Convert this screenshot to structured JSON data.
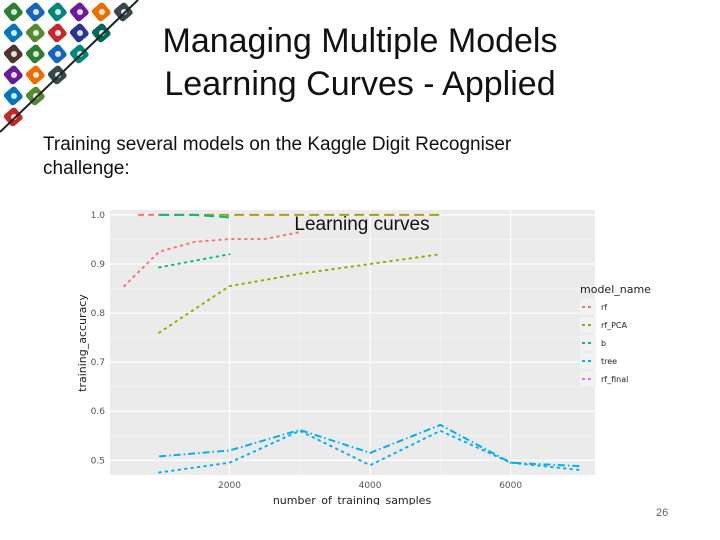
{
  "slide": {
    "title_line1": "Managing Multiple Models",
    "title_line2": "Learning Curves - Applied",
    "body": "Training several models on the Kaggle Digit Recogniser challenge:",
    "page_number": "26"
  },
  "chart_data": {
    "type": "line",
    "title": "Learning curves",
    "xlabel": "number_of_training_samples",
    "ylabel": "training_accuracy",
    "xlim": [
      300,
      7200
    ],
    "ylim": [
      0.47,
      1.01
    ],
    "x_ticks": [
      2000,
      4000,
      6000
    ],
    "y_ticks": [
      0.5,
      0.6,
      0.7,
      0.8,
      0.9,
      1.0
    ],
    "grid": true,
    "background": "#ebebeb",
    "legend": {
      "title": "model_name",
      "position": "right"
    },
    "series": [
      {
        "name": "rf",
        "color": "#f8766d",
        "style": "dashed",
        "x": [
          700,
          1000
        ],
        "y": [
          1.0,
          1.0
        ]
      },
      {
        "name": "rf",
        "color": "#f8766d",
        "style": "dotted",
        "x": [
          500,
          1000,
          1500,
          2000,
          2500,
          3000
        ],
        "y": [
          0.855,
          0.925,
          0.945,
          0.951,
          0.951,
          0.965
        ]
      },
      {
        "name": "rf_PCA",
        "color": "#a3a500",
        "style": "longdash",
        "x": [
          1000,
          2000,
          3000,
          4000,
          5000
        ],
        "y": [
          1.0,
          1.0,
          1.0,
          1.0,
          1.0
        ]
      },
      {
        "name": "rf_PCA",
        "color": "#a3a500",
        "style": "dotted",
        "x": [
          1000,
          2000,
          3000,
          4000,
          5000
        ],
        "y": [
          0.76,
          0.855,
          0.88,
          0.9,
          0.92
        ]
      },
      {
        "name": "b",
        "color": "#00bf7d",
        "style": "longdash",
        "x": [
          1000,
          1500,
          2000
        ],
        "y": [
          1.0,
          1.0,
          0.995
        ]
      },
      {
        "name": "b",
        "color": "#00bf7d",
        "style": "dotted",
        "x": [
          1000,
          2000
        ],
        "y": [
          0.893,
          0.92
        ]
      },
      {
        "name": "tree",
        "color": "#00b0f6",
        "style": "dashdot",
        "x": [
          1000,
          2000,
          3000,
          4000,
          5000,
          6000,
          7000
        ],
        "y": [
          0.508,
          0.52,
          0.562,
          0.515,
          0.572,
          0.495,
          0.488
        ]
      },
      {
        "name": "tree",
        "color": "#00b0f6",
        "style": "dotted",
        "x": [
          1000,
          2000,
          3000,
          4000,
          5000,
          6000,
          7000
        ],
        "y": [
          0.475,
          0.495,
          0.56,
          0.49,
          0.56,
          0.495,
          0.48
        ]
      }
    ],
    "legend_items": [
      {
        "name": "rf",
        "color": "#f8766d"
      },
      {
        "name": "rf_PCA",
        "color": "#a3a500"
      },
      {
        "name": "b",
        "color": "#00bf7d"
      },
      {
        "name": "tree",
        "color": "#00b0f6"
      },
      {
        "name": "rf_final",
        "color": "#e76bf3"
      }
    ]
  }
}
